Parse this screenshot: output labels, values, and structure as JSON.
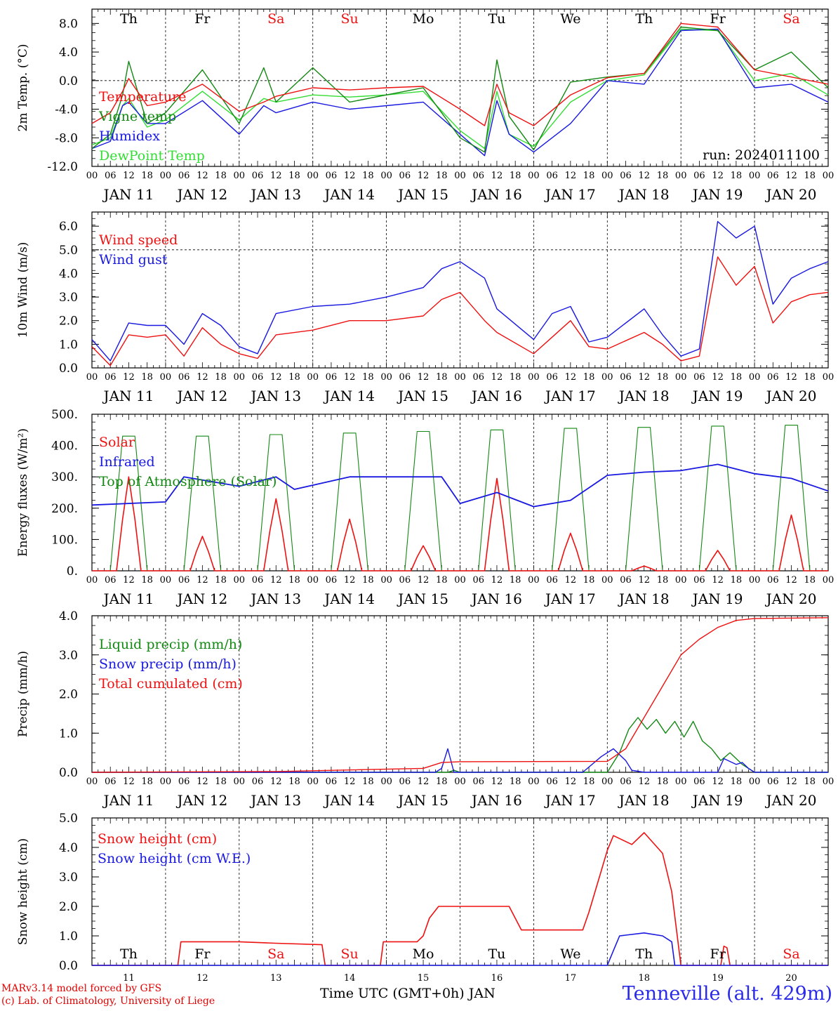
{
  "colors": {
    "red": "#ee1111",
    "green": "#138813",
    "blue": "#1818e0",
    "lightgreen": "#33dd33",
    "weekend": "#ee1111",
    "weekday": "#000000"
  },
  "footer": {
    "credit_line1": "MARv3.14 model forced by GFS",
    "credit_line2": "(c) Lab. of Climatology, University of Liege",
    "x_axis_label": "Time UTC (GMT+0h) JAN",
    "location": "Tenneville (alt. 429m)"
  },
  "chart_data": [
    {
      "type": "line",
      "ylabel": "2m Temp. (°C)",
      "ylim": [
        -12,
        10
      ],
      "yticks": [
        8,
        4,
        0,
        -4,
        -8,
        -12
      ],
      "ytick_labels": [
        "8.0",
        "4.0",
        "0.0",
        "-4.0",
        "-8.0",
        "-12.0"
      ],
      "ref_line": 0,
      "annotation": "run: 2024011100",
      "day_labels": [
        "Th",
        "Fr",
        "Sa",
        "Su",
        "Mo",
        "Tu",
        "We",
        "Th",
        "Fr",
        "Sa"
      ],
      "hour_ticks": [
        "00",
        "06",
        "12",
        "18"
      ],
      "date_labels": [
        "JAN 11",
        "JAN 12",
        "JAN 13",
        "JAN 14",
        "JAN 15",
        "JAN 16",
        "JAN 17",
        "JAN 18",
        "JAN 19",
        "JAN 20"
      ],
      "x_hours": [
        0,
        6,
        10,
        12,
        18,
        24,
        36,
        48,
        56,
        60,
        72,
        84,
        96,
        108,
        120,
        128,
        132,
        136,
        144,
        156,
        168,
        180,
        192,
        204,
        216,
        228,
        240
      ],
      "series": [
        {
          "name": "Temperature",
          "color": "red",
          "values": [
            -6,
            -4.5,
            -1.5,
            0.3,
            -3.5,
            -3,
            -0.5,
            -4.3,
            -3,
            -2.2,
            -1,
            -1.3,
            -1,
            -0.8,
            -4,
            -6.3,
            -0.5,
            -4.5,
            -6.3,
            -2,
            0.4,
            1,
            8,
            7.5,
            1.5,
            0.5,
            -0.5
          ]
        },
        {
          "name": "Vigne temp",
          "color": "green",
          "values": [
            -9.5,
            -7.5,
            -2,
            2.7,
            -6,
            -4.5,
            1.5,
            -6,
            1.8,
            -3,
            1.8,
            -3,
            -2,
            -1,
            -8,
            -10,
            2.9,
            -5,
            -9.7,
            -0.2,
            0.5,
            1,
            7.5,
            7,
            1.5,
            4,
            -1
          ]
        },
        {
          "name": "Humidex",
          "color": "blue",
          "values": [
            -9.5,
            -8.5,
            -3.5,
            -3,
            -6,
            -6,
            -2.8,
            -7.5,
            -3.5,
            -4.5,
            -3,
            -4,
            -3.5,
            -3,
            -7.5,
            -10.5,
            -2.8,
            -7.5,
            -10,
            -6,
            0,
            -0.5,
            7,
            7.2,
            -1,
            -0.5,
            -3
          ]
        },
        {
          "name": "DewPoint Temp",
          "color": "lightgreen",
          "values": [
            -9,
            -8,
            -3.5,
            -2.5,
            -6.5,
            -5.5,
            -1.5,
            -5.5,
            -2.5,
            -3,
            -2,
            -2.3,
            -2,
            -1.5,
            -7,
            -9.5,
            -1.5,
            -7.5,
            -9.2,
            -3,
            0,
            0.8,
            7.2,
            7,
            0,
            1,
            -2
          ]
        }
      ]
    },
    {
      "type": "line",
      "ylabel": "10m Wind (m/s)",
      "ylim": [
        0,
        6.6
      ],
      "yticks": [
        0,
        1,
        2,
        3,
        4,
        5,
        6
      ],
      "ytick_labels": [
        "0.0",
        "1.0",
        "2.0",
        "3.0",
        "4.0",
        "5.0",
        "6.0"
      ],
      "ref_line": 5,
      "x_hours": [
        0,
        6,
        12,
        18,
        24,
        30,
        36,
        42,
        48,
        54,
        60,
        72,
        84,
        96,
        108,
        114,
        120,
        128,
        132,
        144,
        150,
        156,
        162,
        168,
        180,
        186,
        192,
        198,
        204,
        210,
        216,
        222,
        228,
        234,
        240
      ],
      "series": [
        {
          "name": "Wind speed",
          "color": "red",
          "values": [
            0.9,
            0.1,
            1.4,
            1.3,
            1.4,
            0.5,
            1.7,
            1.0,
            0.6,
            0.4,
            1.4,
            1.6,
            2.0,
            2.0,
            2.2,
            2.9,
            3.2,
            2.0,
            1.5,
            0.6,
            1.3,
            2.0,
            0.9,
            0.8,
            1.5,
            1.0,
            0.3,
            0.5,
            4.7,
            3.5,
            4.3,
            1.9,
            2.8,
            3.1,
            3.2
          ]
        },
        {
          "name": "Wind gust",
          "color": "blue",
          "values": [
            1.2,
            0.3,
            1.9,
            1.8,
            1.8,
            1.0,
            2.3,
            1.8,
            0.9,
            0.6,
            2.3,
            2.6,
            2.7,
            3.0,
            3.4,
            4.2,
            4.5,
            3.8,
            2.5,
            1.2,
            2.3,
            2.6,
            1.1,
            1.3,
            2.5,
            1.4,
            0.5,
            0.8,
            6.2,
            5.5,
            6.0,
            2.7,
            3.8,
            4.2,
            4.5
          ]
        }
      ]
    },
    {
      "type": "line",
      "ylabel": "Energy fluxes (W/m²)",
      "ylim": [
        0,
        500
      ],
      "yticks": [
        0,
        100,
        200,
        300,
        400,
        500
      ],
      "ytick_labels": [
        "0.",
        "100.",
        "200.",
        "300.",
        "400.",
        "500."
      ],
      "solar_peaks": [
        300,
        110,
        230,
        165,
        80,
        295,
        120,
        15,
        65,
        178
      ],
      "toa_peaks": [
        430,
        430,
        435,
        440,
        445,
        450,
        455,
        458,
        462,
        465
      ],
      "infrared_x": [
        0,
        24,
        30,
        48,
        60,
        66,
        84,
        96,
        114,
        120,
        132,
        144,
        156,
        168,
        180,
        192,
        204,
        216,
        228,
        240
      ],
      "infrared_values": [
        210,
        220,
        300,
        270,
        300,
        260,
        300,
        300,
        300,
        215,
        250,
        205,
        225,
        305,
        315,
        320,
        340,
        310,
        295,
        255
      ],
      "series": [
        {
          "name": "Solar",
          "color": "red"
        },
        {
          "name": "Infrared",
          "color": "blue"
        },
        {
          "name": "Top of Atmosphere (Solar)",
          "color": "green"
        }
      ]
    },
    {
      "type": "line",
      "ylabel": "Precip (mm/h)",
      "ylim": [
        0,
        4
      ],
      "yticks": [
        0,
        1,
        2,
        3,
        4
      ],
      "ytick_labels": [
        "0.0",
        "1.0",
        "2.0",
        "3.0",
        "4.0"
      ],
      "series": [
        {
          "name": "Liquid precip (mm/h)",
          "color": "green",
          "x": [
            0,
            108,
            116,
            118,
            120,
            168,
            172,
            175,
            178,
            181,
            184,
            187,
            190,
            193,
            196,
            199,
            202,
            205,
            208,
            212,
            216,
            240
          ],
          "values": [
            0,
            0,
            0,
            0.05,
            0,
            0,
            0.5,
            1.1,
            1.4,
            1.1,
            1.35,
            1.0,
            1.3,
            0.9,
            1.3,
            0.8,
            0.6,
            0.3,
            0.5,
            0.2,
            0,
            0
          ]
        },
        {
          "name": "Snow precip (mm/h)",
          "color": "blue",
          "x": [
            0,
            112,
            114,
            116,
            118,
            160,
            166,
            170,
            174,
            176,
            180,
            196,
            204,
            206,
            210,
            212,
            214,
            216,
            240
          ],
          "values": [
            0,
            0,
            0.1,
            0.6,
            0,
            0,
            0.4,
            0.6,
            0.3,
            0.05,
            0,
            0,
            0,
            0.35,
            0.2,
            0.25,
            0.1,
            0,
            0
          ]
        },
        {
          "name": "Total cumulated (cm)",
          "color": "red",
          "x": [
            0,
            60,
            108,
            114,
            120,
            168,
            174,
            186,
            192,
            198,
            204,
            210,
            216,
            240
          ],
          "values": [
            0,
            0.02,
            0.1,
            0.25,
            0.27,
            0.28,
            0.6,
            2.2,
            3.0,
            3.4,
            3.7,
            3.88,
            3.93,
            3.95
          ]
        }
      ]
    },
    {
      "type": "line",
      "ylabel": "Snow height (cm)",
      "ylim": [
        0,
        5
      ],
      "yticks": [
        0,
        1,
        2,
        3,
        4,
        5
      ],
      "ytick_labels": [
        "0.0",
        "1.0",
        "2.0",
        "3.0",
        "4.0",
        "5.0"
      ],
      "day_numbers": [
        "11",
        "12",
        "13",
        "14",
        "15",
        "16",
        "17",
        "18",
        "19",
        "20"
      ],
      "series": [
        {
          "name": "Snow height (cm)",
          "color": "red",
          "x": [
            0,
            28,
            29,
            48,
            60,
            75,
            76,
            94,
            95,
            106,
            108,
            110,
            113,
            114,
            136,
            140,
            160,
            162,
            166,
            168,
            170,
            176,
            180,
            186,
            189,
            192,
            198,
            199,
            200,
            205,
            206,
            207,
            208,
            240
          ],
          "values": [
            0,
            0,
            0.8,
            0.8,
            0.75,
            0.7,
            0,
            0,
            0.8,
            0.8,
            1.0,
            1.6,
            2.0,
            2.0,
            2.0,
            1.2,
            1.2,
            1.8,
            3.2,
            3.9,
            4.4,
            4.1,
            4.5,
            3.8,
            2.5,
            0,
            0,
            0,
            0,
            0,
            0.65,
            0.6,
            0,
            0
          ]
        },
        {
          "name": "Snow height (cm W.E.)",
          "color": "blue",
          "x": [
            0,
            168,
            170,
            172,
            180,
            186,
            189,
            190,
            240
          ],
          "values": [
            0,
            0,
            0.5,
            1.0,
            1.1,
            1.0,
            0.8,
            0,
            0
          ]
        }
      ]
    }
  ]
}
